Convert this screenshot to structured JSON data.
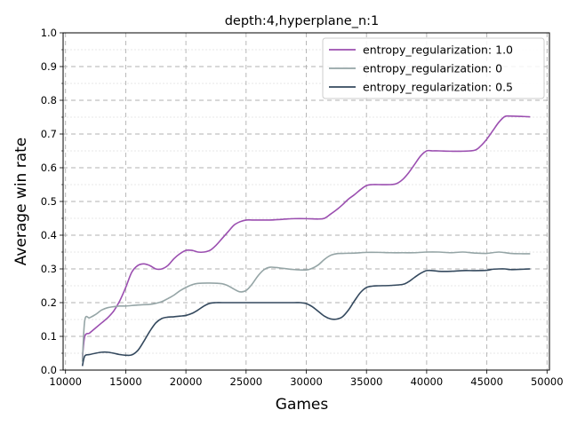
{
  "chart_data": {
    "type": "line",
    "title": "depth:4,hyperplane_n:1",
    "xlabel": "Games",
    "ylabel": "Average win rate",
    "xlim": [
      9800,
      50200
    ],
    "ylim": [
      0.0,
      1.0
    ],
    "xticks": [
      10000,
      15000,
      20000,
      25000,
      30000,
      35000,
      40000,
      45000,
      50000
    ],
    "yticks": [
      0.0,
      0.1,
      0.2,
      0.3,
      0.4,
      0.5,
      0.6,
      0.7,
      0.8,
      0.9,
      1.0
    ],
    "grid": true,
    "legend_position": "top-right",
    "series": [
      {
        "name": "entropy_regularization: 1.0",
        "color": "#9b4fb0",
        "x": [
          11400,
          11600,
          12000,
          12500,
          13000,
          13500,
          14000,
          14500,
          15000,
          15500,
          16000,
          16500,
          17000,
          17500,
          18000,
          18500,
          19000,
          19500,
          20000,
          20500,
          21000,
          21500,
          22000,
          22500,
          23000,
          23500,
          24000,
          24500,
          25000,
          25500,
          26000,
          27000,
          28000,
          29000,
          30000,
          31000,
          31500,
          32000,
          32500,
          33000,
          33500,
          34000,
          34500,
          35000,
          35500,
          36000,
          37000,
          37500,
          38000,
          38500,
          39000,
          39500,
          40000,
          40500,
          41000,
          42000,
          43000,
          44000,
          44500,
          45000,
          45500,
          46000,
          46500,
          47000,
          48000,
          48600
        ],
        "values": [
          0.035,
          0.1,
          0.11,
          0.125,
          0.14,
          0.155,
          0.175,
          0.205,
          0.245,
          0.29,
          0.31,
          0.315,
          0.31,
          0.3,
          0.3,
          0.31,
          0.33,
          0.345,
          0.355,
          0.355,
          0.35,
          0.35,
          0.355,
          0.37,
          0.39,
          0.41,
          0.43,
          0.44,
          0.445,
          0.445,
          0.445,
          0.445,
          0.447,
          0.449,
          0.449,
          0.448,
          0.45,
          0.462,
          0.475,
          0.49,
          0.507,
          0.52,
          0.535,
          0.547,
          0.55,
          0.55,
          0.55,
          0.553,
          0.565,
          0.585,
          0.61,
          0.635,
          0.65,
          0.65,
          0.65,
          0.649,
          0.649,
          0.652,
          0.665,
          0.685,
          0.71,
          0.735,
          0.752,
          0.753,
          0.752,
          0.751
        ]
      },
      {
        "name": "entropy_regularization: 0",
        "color": "#95a5a6",
        "x": [
          11400,
          11600,
          12000,
          12500,
          13000,
          13500,
          14000,
          14500,
          15000,
          16000,
          17000,
          17500,
          18000,
          18500,
          19000,
          19500,
          20000,
          20500,
          21000,
          22000,
          23000,
          23500,
          24000,
          24500,
          25000,
          25500,
          26000,
          26500,
          27000,
          27500,
          28000,
          29000,
          30000,
          30500,
          31000,
          31500,
          32000,
          32500,
          33000,
          34000,
          35000,
          36000,
          37000,
          38000,
          39000,
          40000,
          41000,
          42000,
          43000,
          44000,
          45000,
          46000,
          47000,
          48000,
          48600
        ],
        "values": [
          0.025,
          0.148,
          0.155,
          0.165,
          0.178,
          0.185,
          0.188,
          0.19,
          0.19,
          0.193,
          0.195,
          0.198,
          0.203,
          0.212,
          0.222,
          0.235,
          0.245,
          0.253,
          0.257,
          0.258,
          0.256,
          0.25,
          0.24,
          0.232,
          0.236,
          0.255,
          0.28,
          0.298,
          0.305,
          0.304,
          0.302,
          0.298,
          0.297,
          0.302,
          0.312,
          0.328,
          0.34,
          0.345,
          0.346,
          0.347,
          0.349,
          0.349,
          0.348,
          0.348,
          0.348,
          0.35,
          0.35,
          0.348,
          0.35,
          0.347,
          0.346,
          0.35,
          0.346,
          0.345,
          0.345
        ]
      },
      {
        "name": "entropy_regularization: 0.5",
        "color": "#34495e",
        "x": [
          11400,
          11600,
          12000,
          12500,
          13000,
          13500,
          14000,
          14500,
          15000,
          15500,
          16000,
          16500,
          17000,
          17500,
          18000,
          18500,
          19000,
          19500,
          20000,
          20500,
          21000,
          21500,
          22000,
          22500,
          23000,
          24000,
          25000,
          26000,
          27000,
          28000,
          29000,
          29500,
          30000,
          30500,
          31000,
          31500,
          32000,
          32500,
          33000,
          33500,
          34000,
          34500,
          35000,
          35500,
          36000,
          37000,
          38000,
          38500,
          39000,
          39500,
          40000,
          40500,
          41000,
          42000,
          43000,
          44000,
          45000,
          45500,
          46000,
          46500,
          47000,
          48000,
          48600
        ],
        "values": [
          0.012,
          0.042,
          0.046,
          0.05,
          0.053,
          0.053,
          0.05,
          0.046,
          0.044,
          0.045,
          0.058,
          0.085,
          0.115,
          0.14,
          0.153,
          0.157,
          0.158,
          0.16,
          0.162,
          0.168,
          0.178,
          0.19,
          0.198,
          0.2,
          0.2,
          0.2,
          0.2,
          0.2,
          0.2,
          0.2,
          0.2,
          0.2,
          0.197,
          0.188,
          0.174,
          0.16,
          0.152,
          0.151,
          0.158,
          0.178,
          0.205,
          0.23,
          0.245,
          0.249,
          0.25,
          0.251,
          0.254,
          0.262,
          0.275,
          0.287,
          0.295,
          0.295,
          0.293,
          0.293,
          0.295,
          0.295,
          0.296,
          0.299,
          0.3,
          0.3,
          0.298,
          0.299,
          0.3
        ]
      }
    ]
  }
}
